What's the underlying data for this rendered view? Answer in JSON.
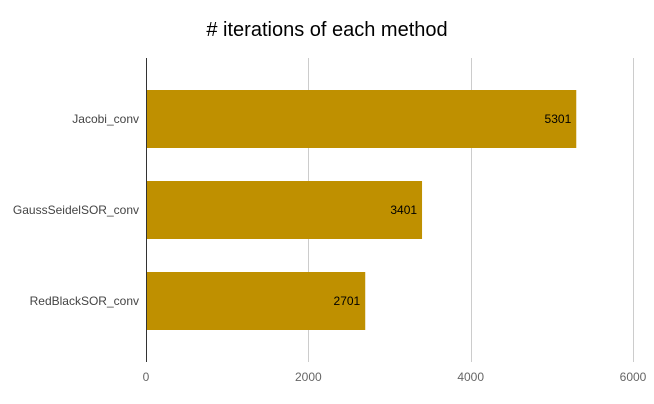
{
  "chart_data": {
    "type": "bar",
    "orientation": "horizontal",
    "title": "# iterations of each method",
    "categories": [
      "Jacobi_conv",
      "GaussSeidelSOR_conv",
      "RedBlackSOR_conv"
    ],
    "values": [
      5301,
      3401,
      2701
    ],
    "data_labels": [
      "5301",
      "3401",
      "2701"
    ],
    "xlim": [
      0,
      6000
    ],
    "xticks": [
      0,
      2000,
      4000,
      6000
    ],
    "xtick_labels": [
      "0",
      "2000",
      "4000",
      "6000"
    ],
    "grid": true,
    "legend": "none",
    "bar_color": "#bf9000"
  }
}
